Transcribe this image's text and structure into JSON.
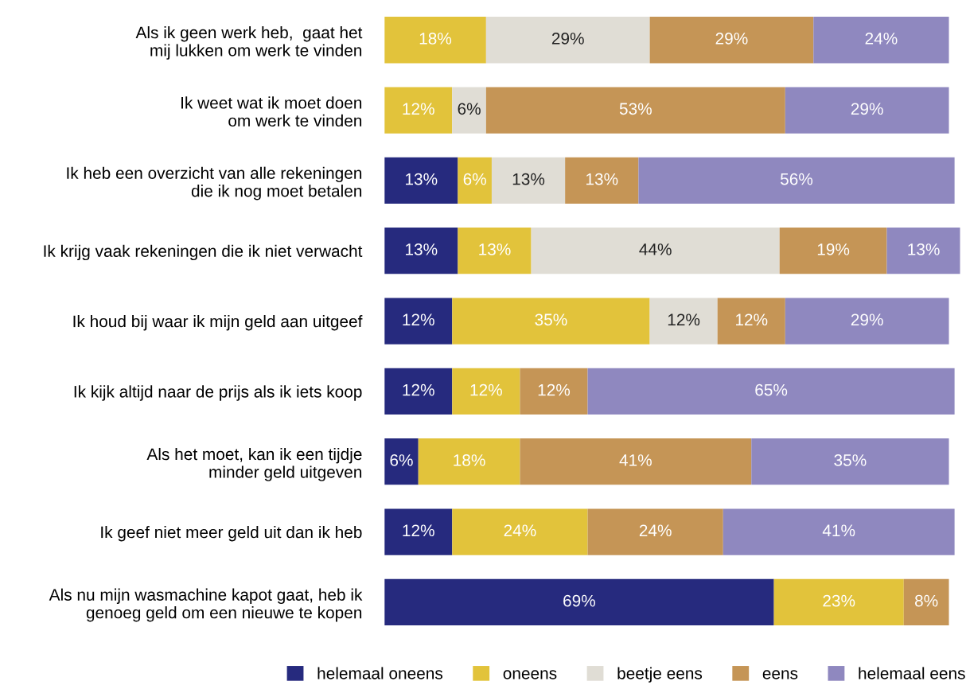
{
  "chart_data": {
    "type": "bar",
    "orientation": "horizontal",
    "stacked": true,
    "legend": "bottom",
    "categories": [
      "Als ik geen werk heb,  gaat het\nmij lukken om werk te vinden",
      "Ik weet wat ik moet doen\nom werk te vinden",
      "Ik heb een overzicht van alle rekeningen\ndie ik nog moet betalen",
      "Ik krijg vaak rekeningen die ik niet verwacht",
      "Ik houd bij waar ik mijn geld aan uitgeef",
      "Ik kijk altijd naar de prijs als ik iets koop",
      "Als het moet, kan ik een tijdje\nminder geld uitgeven",
      "Ik geef niet meer geld uit dan ik heb",
      "Als nu mijn wasmachine kapot gaat, heb ik\ngenoeg geld om een nieuwe te kopen"
    ],
    "series": [
      {
        "name": "helemaal oneens",
        "color": "#262a7e",
        "values": [
          null,
          null,
          13,
          13,
          12,
          12,
          6,
          12,
          69
        ],
        "value_labels": [
          null,
          null,
          "13%",
          "13%",
          "12%",
          "12%",
          "6%",
          "12%",
          "69%"
        ]
      },
      {
        "name": "oneens",
        "color": "#e2c33b",
        "values": [
          18,
          12,
          6,
          13,
          35,
          12,
          18,
          24,
          23
        ],
        "value_labels": [
          "18%",
          "12%",
          "6%",
          "13%",
          "35%",
          "12%",
          "18%",
          "24%",
          "23%"
        ]
      },
      {
        "name": "beetje eens",
        "color": "#e0ddd5",
        "values": [
          29,
          6,
          13,
          44,
          12,
          null,
          null,
          null,
          null
        ],
        "value_labels": [
          "29%",
          "6%",
          "13%",
          "44%",
          "12%",
          null,
          null,
          null,
          null
        ]
      },
      {
        "name": "eens",
        "color": "#c59556",
        "values": [
          29,
          53,
          13,
          19,
          12,
          12,
          41,
          24,
          8
        ],
        "value_labels": [
          "29%",
          "53%",
          "13%",
          "19%",
          "12%",
          "12%",
          "41%",
          "24%",
          "8%"
        ]
      },
      {
        "name": "helemaal eens",
        "color": "#8f88bf",
        "values": [
          24,
          29,
          56,
          13,
          29,
          65,
          35,
          41,
          null
        ],
        "value_labels": [
          "24%",
          "29%",
          "56%",
          "13%",
          "29%",
          "65%",
          "35%",
          "41%",
          null
        ]
      }
    ]
  }
}
